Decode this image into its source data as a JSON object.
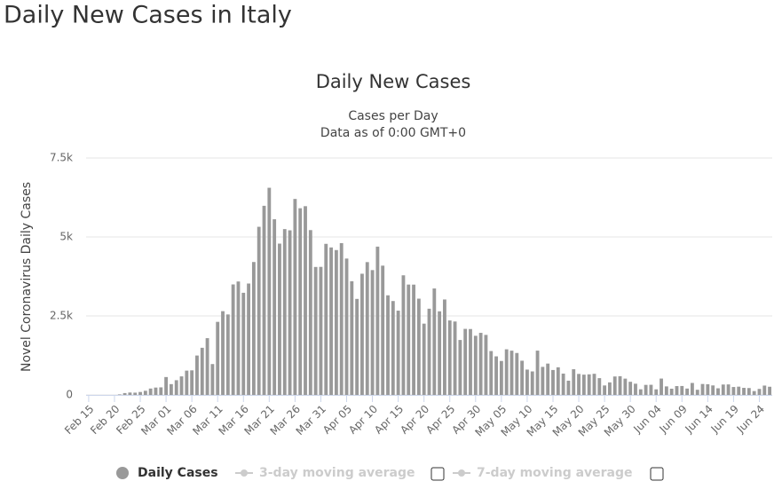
{
  "page_title": "Daily New Cases in Italy",
  "chart_data": {
    "type": "bar",
    "title": "Daily New Cases",
    "subtitle": [
      "Cases per Day",
      "Data as of 0:00 GMT+0"
    ],
    "y_label": "Novel Coronavirus Daily Cases",
    "categories": [
      "Feb 15",
      null,
      null,
      null,
      null,
      "Feb 20",
      null,
      null,
      null,
      null,
      "Feb 25",
      null,
      null,
      null,
      null,
      "Mar 01",
      null,
      null,
      null,
      null,
      "Mar 06",
      null,
      null,
      null,
      null,
      "Mar 11",
      null,
      null,
      null,
      null,
      "Mar 16",
      null,
      null,
      null,
      null,
      "Mar 21",
      null,
      null,
      null,
      null,
      "Mar 26",
      null,
      null,
      null,
      null,
      "Mar 31",
      null,
      null,
      null,
      null,
      "Apr 05",
      null,
      null,
      null,
      null,
      "Apr 10",
      null,
      null,
      null,
      null,
      "Apr 15",
      null,
      null,
      null,
      null,
      "Apr 20",
      null,
      null,
      null,
      null,
      "Apr 25",
      null,
      null,
      null,
      null,
      "Apr 30",
      null,
      null,
      null,
      null,
      "May 05",
      null,
      null,
      null,
      null,
      "May 10",
      null,
      null,
      null,
      null,
      "May 15",
      null,
      null,
      null,
      null,
      "May 20",
      null,
      null,
      null,
      null,
      "May 25",
      null,
      null,
      null,
      null,
      "May 30",
      null,
      null,
      null,
      null,
      "Jun 04",
      null,
      null,
      null,
      null,
      "Jun 09",
      null,
      null,
      null,
      null,
      "Jun 14",
      null,
      null,
      null,
      null,
      "Jun 19",
      null,
      null,
      null,
      null,
      "Jun 24",
      null,
      null
    ],
    "series": [
      {
        "name": "Daily Cases",
        "color": "#999999",
        "values": [
          0,
          0,
          0,
          0,
          0,
          0,
          17,
          59,
          76,
          72,
          93,
          131,
          202,
          233,
          240,
          566,
          342,
          466,
          587,
          769,
          778,
          1247,
          1492,
          1797,
          977,
          2313,
          2651,
          2547,
          3497,
          3590,
          3233,
          3526,
          4207,
          5322,
          5986,
          6557,
          5560,
          4789,
          5249,
          5210,
          6203,
          5909,
          5974,
          5217,
          4050,
          4053,
          4782,
          4668,
          4585,
          4805,
          4316,
          3599,
          3039,
          3836,
          4204,
          3951,
          4694,
          4092,
          3153,
          2972,
          2667,
          3786,
          3493,
          3491,
          3047,
          2256,
          2729,
          3370,
          2646,
          3021,
          2357,
          2324,
          1739,
          2091,
          2086,
          1872,
          1965,
          1900,
          1389,
          1221,
          1075,
          1444,
          1401,
          1327,
          1083,
          802,
          744,
          1402,
          888,
          992,
          789,
          875,
          675,
          451,
          813,
          665,
          642,
          652,
          669,
          531,
          300,
          397,
          584,
          593,
          516,
          416,
          355,
          178,
          318,
          321,
          177,
          518,
          270,
          197,
          280,
          283,
          202,
          379,
          163,
          346,
          338,
          301,
          210,
          329,
          333,
          251,
          262,
          224,
          218,
          122,
          190,
          296,
          259
        ]
      }
    ],
    "inactive_legend": [
      "3-day moving average",
      "7-day moving average"
    ],
    "ylim": [
      0,
      7500
    ],
    "yticks": [
      0,
      {
        "value": 2500,
        "label": "2.5k"
      },
      {
        "value": 5000,
        "label": "5k"
      },
      {
        "value": 7500,
        "label": "7.5k"
      }
    ],
    "grid": true
  }
}
